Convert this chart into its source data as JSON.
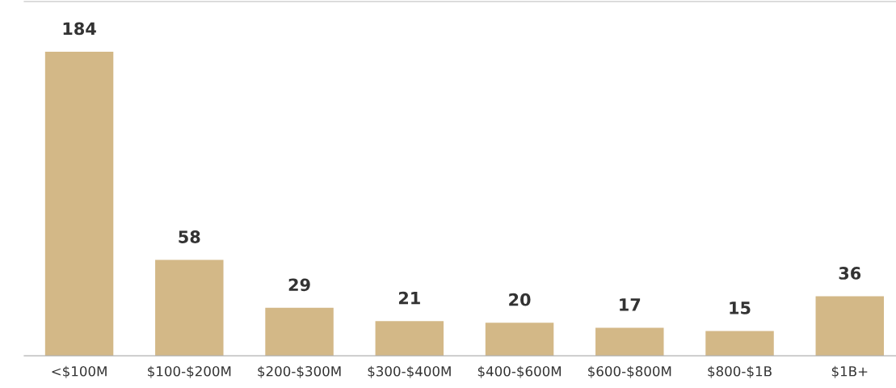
{
  "chart_data": {
    "type": "bar",
    "categories": [
      "<$100M",
      "$100-$200M",
      "$200-$300M",
      "$300-$400M",
      "$400-$600M",
      "$600-$800M",
      "$800-$1B",
      "$1B+"
    ],
    "values": [
      184,
      58,
      29,
      21,
      20,
      17,
      15,
      36
    ],
    "color": "#d3b887",
    "data_labels": true,
    "grid": false,
    "legend": false
  }
}
